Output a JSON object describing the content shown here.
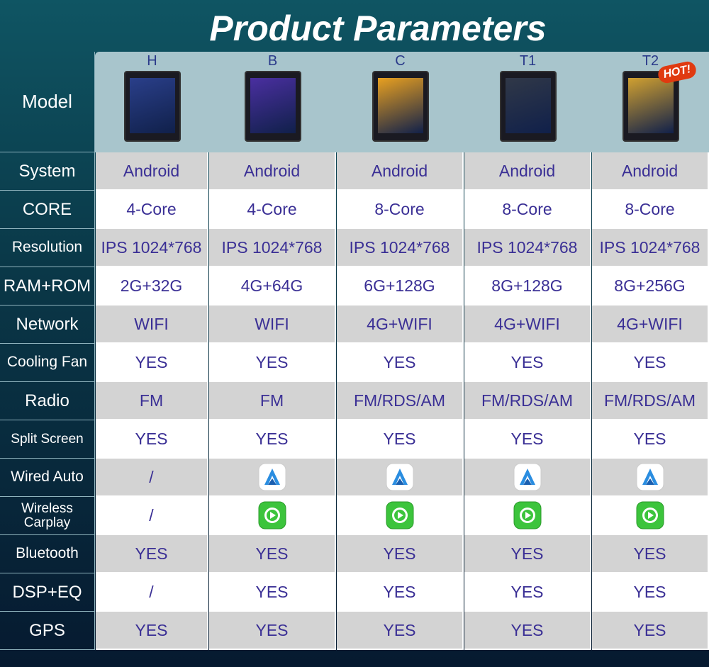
{
  "title": "Product Parameters",
  "header": {
    "label": "Model",
    "models": [
      "H",
      "B",
      "C",
      "T1",
      "T2"
    ],
    "badge": "HOT!"
  },
  "rows": [
    {
      "label": "System",
      "cells": [
        "Android",
        "Android",
        "Android",
        "Android",
        "Android"
      ]
    },
    {
      "label": "CORE",
      "cells": [
        "4-Core",
        "4-Core",
        "8-Core",
        "8-Core",
        "8-Core"
      ]
    },
    {
      "label": "Resolution",
      "cells": [
        "IPS 1024*768",
        "IPS 1024*768",
        "IPS 1024*768",
        "IPS 1024*768",
        "IPS 1024*768"
      ]
    },
    {
      "label": "RAM+ROM",
      "cells": [
        "2G+32G",
        "4G+64G",
        "6G+128G",
        "8G+128G",
        "8G+256G"
      ]
    },
    {
      "label": "Network",
      "cells": [
        "WIFI",
        "WIFI",
        "4G+WIFI",
        "4G+WIFI",
        "4G+WIFI"
      ]
    },
    {
      "label": "Cooling Fan",
      "cells": [
        "YES",
        "YES",
        "YES",
        "YES",
        "YES"
      ]
    },
    {
      "label": "Radio",
      "cells": [
        "FM",
        "FM",
        "FM/RDS/AM",
        "FM/RDS/AM",
        "FM/RDS/AM"
      ]
    },
    {
      "label": "Split Screen",
      "cells": [
        "YES",
        "YES",
        "YES",
        "YES",
        "YES"
      ]
    },
    {
      "label": "Wired Auto",
      "cells": [
        "/",
        null,
        null,
        null,
        null
      ]
    },
    {
      "label": "Wireless Carplay",
      "cells": [
        "/",
        null,
        null,
        null,
        null
      ]
    },
    {
      "label": "Bluetooth",
      "cells": [
        "YES",
        "YES",
        "YES",
        "YES",
        "YES"
      ]
    },
    {
      "label": "DSP+EQ",
      "cells": [
        "/",
        "YES",
        "YES",
        "YES",
        "YES"
      ]
    },
    {
      "label": "GPS",
      "cells": [
        "YES",
        "YES",
        "YES",
        "YES",
        "YES"
      ]
    }
  ]
}
